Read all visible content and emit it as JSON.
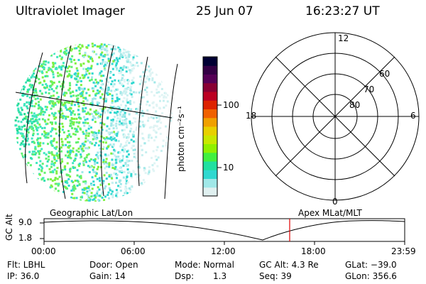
{
  "header": {
    "instrument": "Ultraviolet Imager",
    "date": "25 Jun 07",
    "time": "16:23:27 UT"
  },
  "colorbar": {
    "label": "photon cm⁻²s⁻¹",
    "ticks": [
      "100",
      "10"
    ],
    "colors": [
      "#000033",
      "#330044",
      "#550055",
      "#880033",
      "#bb0022",
      "#dd2200",
      "#f06000",
      "#f0a000",
      "#e8d000",
      "#c8e800",
      "#90f000",
      "#40f040",
      "#20e0a0",
      "#30d8d0",
      "#a0e8e8",
      "#e0f0f0"
    ]
  },
  "polar": {
    "top_label": "12",
    "left_label": "18",
    "right_label": "6",
    "bottom_label": "0",
    "ring_labels": [
      "60",
      "70",
      "80"
    ]
  },
  "timeline": {
    "left_title": "Geographic Lat/Lon",
    "right_title": "Apex MLat/MLT",
    "axis_label": "GC Alt",
    "y_ticks": [
      "9.0",
      "1.8"
    ],
    "x_ticks": [
      "00:00",
      "06:00",
      "12:00",
      "18:00",
      "23:59"
    ],
    "marker_color": "#e00000"
  },
  "info": {
    "flt": "Flt: LBHL",
    "door": "Door: Open",
    "mode": "Mode: Normal",
    "gcalt": "GC Alt: 4.3 Re",
    "glat": "GLat: −39.0",
    "ip": "IP: 36.0",
    "gain": "Gain: 14",
    "dsp_label": "Dsp:",
    "dsp_value": "1.3",
    "seq": "Seq: 39",
    "glon": "GLon: 356.6"
  }
}
